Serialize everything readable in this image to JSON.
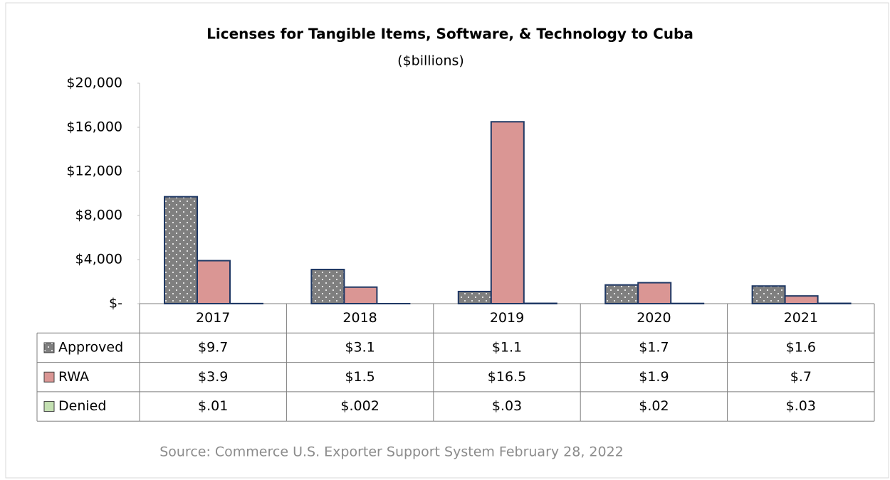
{
  "chart_data": {
    "type": "bar",
    "title": "Licenses for Tangible Items, Software, & Technology to Cuba",
    "subtitle": "($billions)",
    "source": "Source: Commerce U.S. Exporter Support System February 28, 2022",
    "categories": [
      "2017",
      "2018",
      "2019",
      "2020",
      "2021"
    ],
    "series": [
      {
        "name": "Approved",
        "color": "#7f7f7f",
        "pattern": "dots",
        "values": [
          9700,
          3100,
          1100,
          1700,
          1600
        ],
        "value_labels": [
          "$9.7",
          "$3.1",
          "$1.1",
          "$1.7",
          "$1.6"
        ]
      },
      {
        "name": "RWA",
        "color": "#da9694",
        "values": [
          3900,
          1500,
          16500,
          1900,
          700
        ],
        "value_labels": [
          "$3.9",
          "$1.5",
          "$16.5",
          "$1.9",
          "$.7"
        ]
      },
      {
        "name": "Denied",
        "color": "#c4e0b2",
        "values": [
          10,
          2,
          30,
          20,
          30
        ],
        "value_labels": [
          "$.01",
          "$.002",
          "$.03",
          "$.02",
          "$.03"
        ]
      }
    ],
    "ylim": [
      0,
      20000
    ],
    "yticks": [
      {
        "value": 0,
        "label": "$-"
      },
      {
        "value": 4000,
        "label": "$4,000"
      },
      {
        "value": 8000,
        "label": "$8,000"
      },
      {
        "value": 12000,
        "label": "$12,000"
      },
      {
        "value": 16000,
        "label": "$16,000"
      },
      {
        "value": 20000,
        "label": "$20,000"
      }
    ],
    "bar_edge_color": "#1f3864",
    "grid": false
  }
}
